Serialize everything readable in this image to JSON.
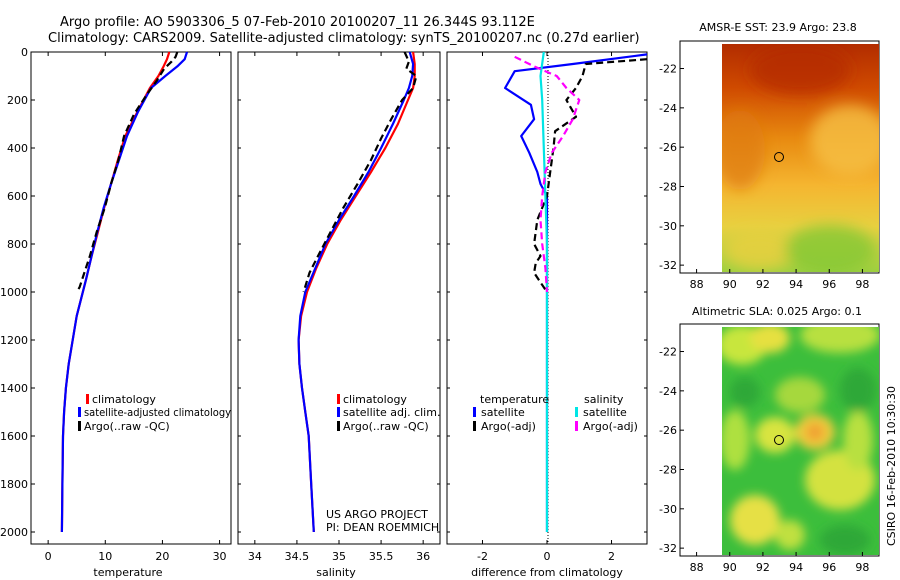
{
  "figure": {
    "title_line1": "Argo profile: AO 5903306_5 07-Feb-2010 20100207_11 26.344S 93.112E",
    "title_line2": "Climatology: CARS2009. Satellite-adjusted climatology: synTS_20100207.nc (0.27d earlier)",
    "footer_project": "US ARGO PROJECT",
    "footer_pi": "PI: DEAN ROEMMICH",
    "side_stamp": "CSIRO 16-Feb-2010 10:30:30"
  },
  "colors": {
    "climatology": "#ff0000",
    "satellite": "#0000ff",
    "argo": "#000000",
    "satellite_salinity": "#00e5e5",
    "argo_salinity": "#ff00ff"
  },
  "chart_data": [
    {
      "type": "line",
      "id": "temperature",
      "xlabel": "temperature",
      "ylabel": "",
      "xlim": [
        -3,
        32
      ],
      "ylim": [
        2050,
        0
      ],
      "xticks": [
        0,
        10,
        20,
        30
      ],
      "yticks": [
        0,
        200,
        400,
        600,
        800,
        1000,
        1200,
        1400,
        1600,
        1800,
        2000
      ],
      "legend": [
        "climatology",
        "satellite-adjusted climatology",
        "Argo(..raw -QC)"
      ],
      "series": [
        {
          "name": "climatology",
          "color": "#ff0000",
          "dashed": false,
          "x": [
            21.2,
            20.8,
            20.2,
            19.3,
            17.8,
            15.6,
            13.5,
            12.2,
            11.0,
            9.8,
            8.7,
            7.6,
            6.6,
            5.0,
            4.3,
            3.6,
            3.1,
            2.8,
            2.6,
            2.5,
            2.4
          ],
          "depth": [
            0,
            30,
            60,
            100,
            150,
            250,
            350,
            450,
            550,
            650,
            750,
            850,
            950,
            1100,
            1200,
            1300,
            1400,
            1500,
            1600,
            1800,
            2000
          ]
        },
        {
          "name": "satellite-adjusted climatology",
          "color": "#0000ff",
          "dashed": false,
          "x": [
            24.3,
            23.9,
            22.6,
            20.5,
            18.0,
            15.7,
            13.8,
            12.4,
            11.0,
            9.7,
            8.6,
            7.6,
            6.6,
            5.0,
            4.3,
            3.6,
            3.1,
            2.8,
            2.6,
            2.5,
            2.4
          ],
          "depth": [
            0,
            30,
            60,
            100,
            150,
            250,
            350,
            450,
            550,
            650,
            750,
            850,
            950,
            1100,
            1200,
            1300,
            1400,
            1500,
            1600,
            1800,
            2000
          ]
        },
        {
          "name": "Argo(..raw -QC)",
          "color": "#000000",
          "dashed": true,
          "x": [
            22.6,
            22.3,
            21.6,
            20.3,
            19.0,
            17.2,
            15.0,
            13.3,
            12.3,
            11.0,
            9.9,
            8.5,
            7.3,
            6.6,
            5.5,
            5.0
          ],
          "depth": [
            0,
            20,
            40,
            70,
            120,
            180,
            260,
            350,
            450,
            550,
            650,
            750,
            850,
            900,
            980,
            1000
          ]
        }
      ]
    },
    {
      "type": "line",
      "id": "salinity",
      "xlabel": "salinity",
      "ylabel": "",
      "xlim": [
        33.8,
        36.2
      ],
      "ylim": [
        2050,
        0
      ],
      "xticks": [
        34,
        34.5,
        35,
        35.5,
        36
      ],
      "xticklabels": [
        "34",
        "34.5",
        "35",
        "35.5",
        "36"
      ],
      "legend": [
        "climatology",
        "satellite adj. clim.",
        "Argo(..raw -QC)"
      ],
      "series": [
        {
          "name": "climatology",
          "color": "#ff0000",
          "dashed": false,
          "x": [
            35.88,
            35.9,
            35.9,
            35.88,
            35.82,
            35.7,
            35.55,
            35.38,
            35.2,
            35.02,
            34.86,
            34.73,
            34.62,
            34.55,
            34.52,
            34.53,
            34.56,
            34.6,
            34.64,
            34.67,
            34.7
          ],
          "depth": [
            0,
            50,
            100,
            150,
            200,
            300,
            400,
            500,
            600,
            700,
            800,
            900,
            1000,
            1100,
            1200,
            1300,
            1400,
            1500,
            1600,
            1800,
            2000
          ]
        },
        {
          "name": "satellite adj. clim.",
          "color": "#0000ff",
          "dashed": false,
          "x": [
            35.84,
            35.88,
            35.87,
            35.83,
            35.77,
            35.64,
            35.5,
            35.35,
            35.18,
            35.0,
            34.84,
            34.72,
            34.6,
            34.54,
            34.52,
            34.53,
            34.56,
            34.6,
            34.64,
            34.67,
            34.7
          ],
          "depth": [
            0,
            50,
            100,
            150,
            200,
            300,
            400,
            500,
            600,
            700,
            800,
            900,
            1000,
            1100,
            1200,
            1300,
            1400,
            1500,
            1600,
            1800,
            2000
          ]
        },
        {
          "name": "Argo(..raw -QC)",
          "color": "#000000",
          "dashed": true,
          "x": [
            35.78,
            35.83,
            35.8,
            35.92,
            35.88,
            35.75,
            35.62,
            35.5,
            35.38,
            35.22,
            35.05,
            34.9,
            34.75,
            34.65,
            34.58
          ],
          "depth": [
            0,
            40,
            70,
            100,
            150,
            200,
            280,
            360,
            450,
            550,
            650,
            750,
            850,
            920,
            1000
          ]
        }
      ]
    },
    {
      "type": "line",
      "id": "difference",
      "xlabel": "difference from climatology",
      "ylabel": "",
      "xlim": [
        -3.1,
        3.1
      ],
      "ylim": [
        2050,
        0
      ],
      "xticks": [
        -2,
        0,
        2
      ],
      "legend_titles": [
        "temperature",
        "salinity"
      ],
      "legend": [
        "satellite",
        "Argo(-adj)",
        "satellite",
        "Argo(-adj)"
      ],
      "series": [
        {
          "name": "temperature satellite",
          "color": "#0000ff",
          "dashed": false,
          "x": [
            3.1,
            0.8,
            -1.0,
            -1.3,
            -0.5,
            -0.4,
            -0.8,
            -0.55,
            -0.3,
            -0.2,
            0.0,
            0.0,
            0.0,
            0.0
          ],
          "depth": [
            10,
            50,
            80,
            150,
            220,
            280,
            350,
            420,
            500,
            550,
            600,
            800,
            1000,
            2000
          ]
        },
        {
          "name": "temperature Argo(-adj)",
          "color": "#000000",
          "dashed": true,
          "x": [
            3.1,
            1.2,
            1.1,
            0.9,
            0.6,
            0.9,
            0.25,
            0.2,
            0.1,
            0.0,
            -0.3,
            -0.4,
            -0.2,
            -0.35,
            -0.4,
            -0.2,
            0.0
          ],
          "depth": [
            30,
            50,
            100,
            150,
            200,
            270,
            330,
            400,
            500,
            600,
            700,
            800,
            850,
            880,
            920,
            960,
            1000
          ]
        },
        {
          "name": "salinity satellite",
          "color": "#00e5e5",
          "dashed": false,
          "x": [
            -0.1,
            -0.2,
            -0.15,
            -0.1,
            -0.05,
            0.0,
            0.0,
            0.0
          ],
          "depth": [
            0,
            100,
            200,
            400,
            600,
            800,
            1000,
            2000
          ]
        },
        {
          "name": "salinity Argo(-adj)",
          "color": "#ff00ff",
          "dashed": true,
          "x": [
            -1.0,
            -0.4,
            0.3,
            0.6,
            1.0,
            0.8,
            0.5,
            0.15,
            -0.05,
            -0.15,
            -0.2,
            -0.15,
            -0.05,
            0.0
          ],
          "depth": [
            20,
            60,
            100,
            150,
            200,
            280,
            350,
            420,
            500,
            600,
            700,
            800,
            900,
            1000
          ]
        }
      ]
    },
    {
      "type": "heatmap",
      "id": "sst_map",
      "title": "AMSR-E SST: 23.9  Argo: 23.8",
      "xlim": [
        87,
        99
      ],
      "ylim": [
        -32.4,
        -20.6
      ],
      "xticks": [
        88,
        90,
        92,
        94,
        96,
        98
      ],
      "yticks": [
        -22,
        -24,
        -26,
        -28,
        -30,
        -32
      ],
      "data_extent_lon": [
        90,
        99
      ],
      "argo_position": {
        "lon": 93.1,
        "lat": -26.3
      },
      "field": "sea surface temperature, warm (red) in north to cool (green) in south"
    },
    {
      "type": "heatmap",
      "id": "sla_map",
      "title": "Altimetric SLA: 0.025  Argo: 0.1",
      "xlim": [
        87,
        99
      ],
      "ylim": [
        -32.4,
        -20.6
      ],
      "xticks": [
        88,
        90,
        92,
        94,
        96,
        98
      ],
      "yticks": [
        -22,
        -24,
        -26,
        -28,
        -30,
        -32
      ],
      "data_extent_lon": [
        90,
        99
      ],
      "argo_position": {
        "lon": 93.1,
        "lat": -26.3
      },
      "field": "sea level anomaly, yellow/orange highs among green lows"
    }
  ]
}
